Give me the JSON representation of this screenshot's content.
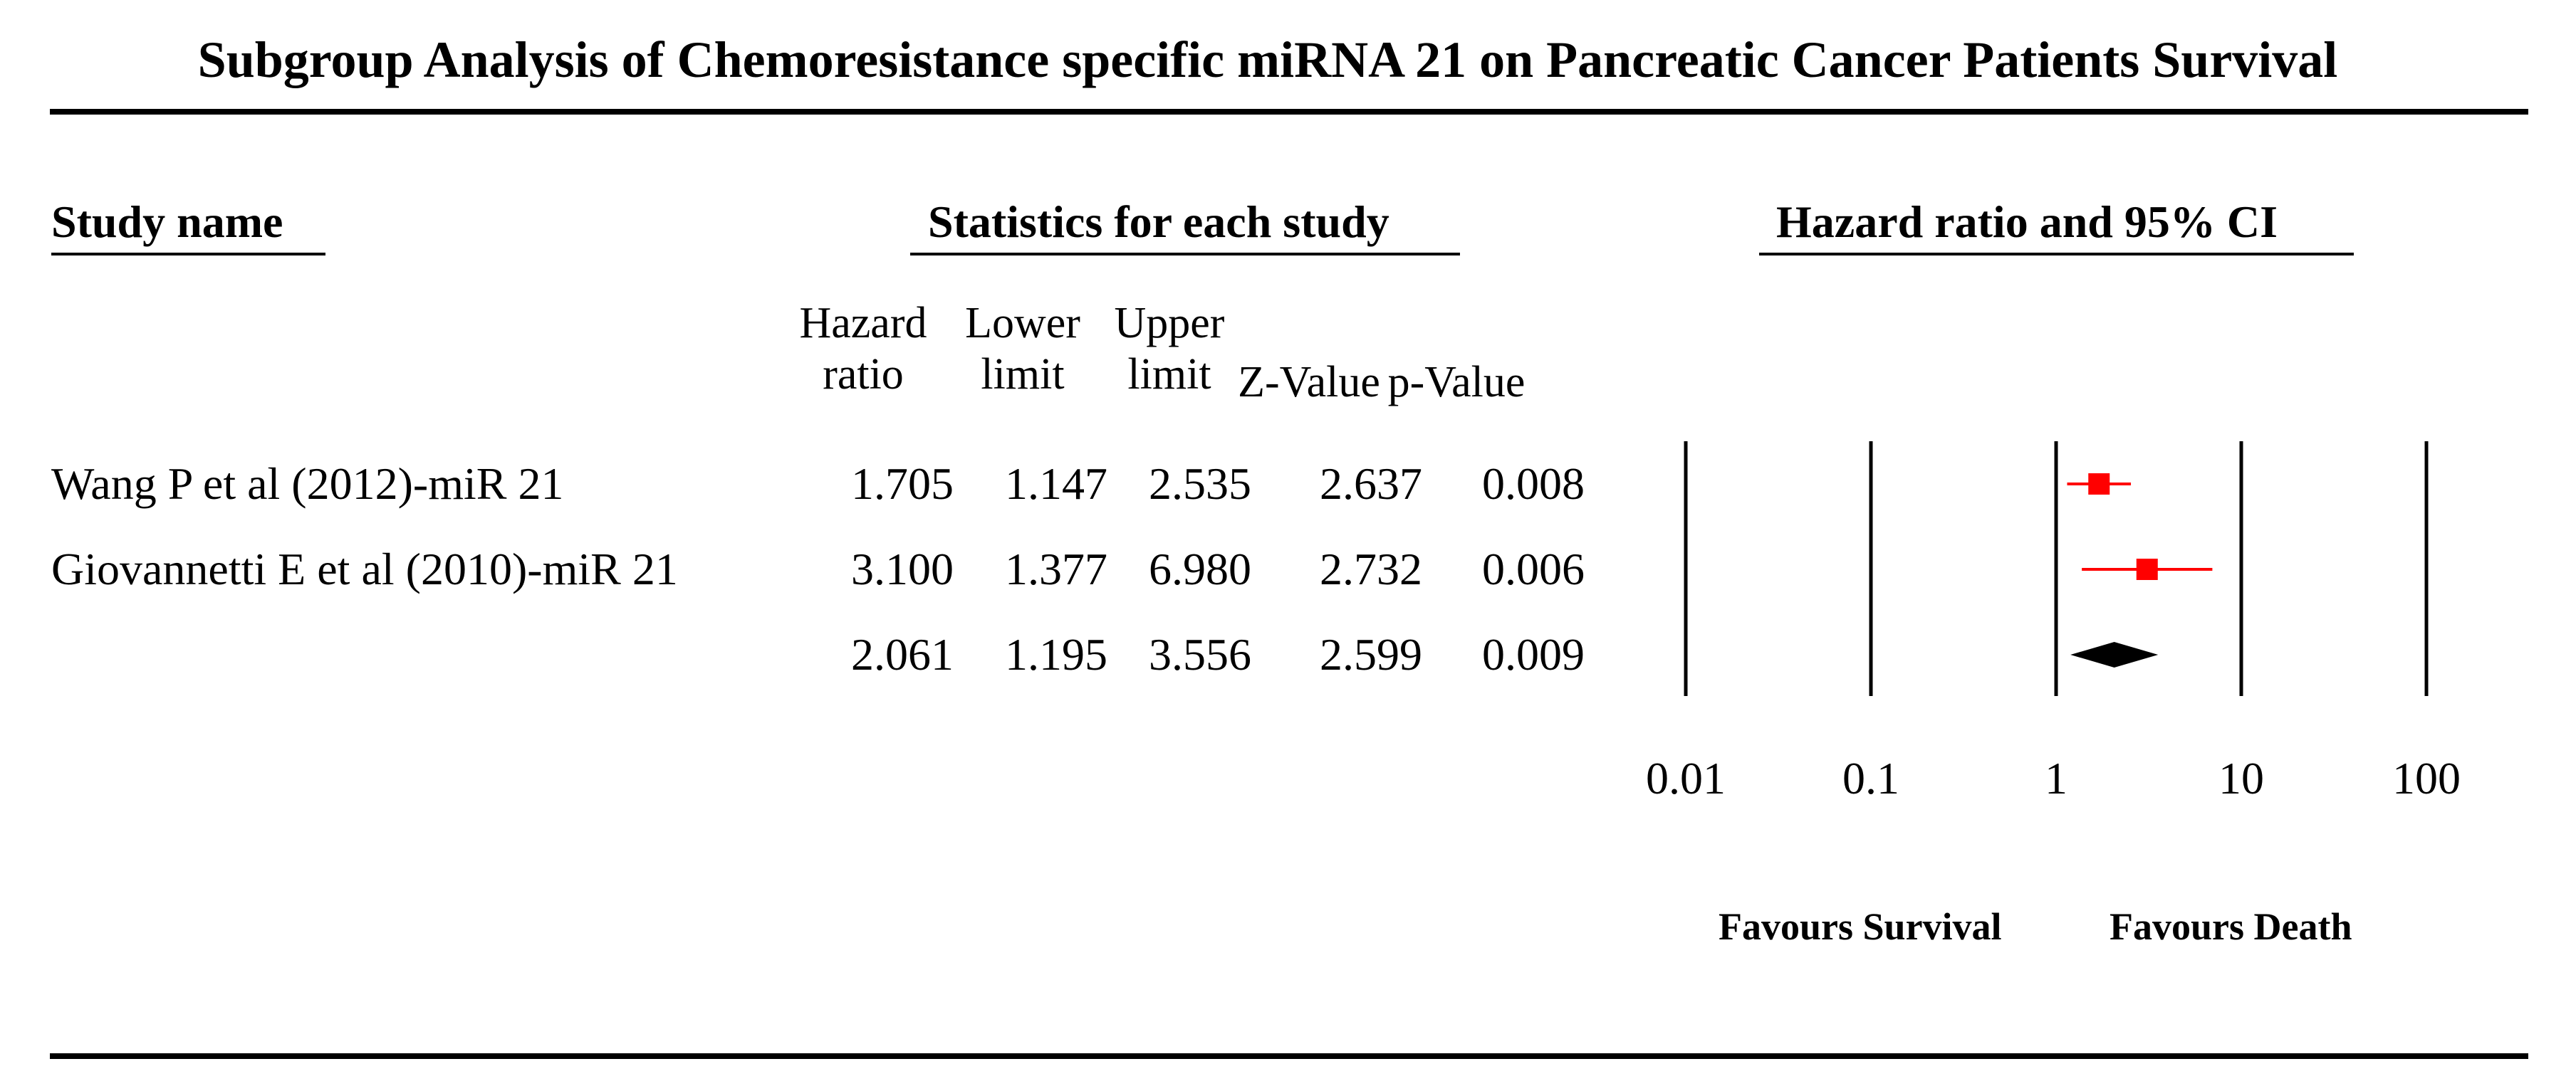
{
  "title": "Subgroup Analysis of Chemoresistance specific miRNA 21 on Pancreatic Cancer Patients Survival",
  "headers": {
    "study_name": "Study name",
    "statistics": "Statistics for each study",
    "plot": "Hazard ratio and 95% CI"
  },
  "columns": {
    "hr": [
      "Hazard",
      "ratio"
    ],
    "lower": [
      "Lower",
      "limit"
    ],
    "upper": [
      "Upper",
      "limit"
    ],
    "z": "Z-Value",
    "p": "p-Value"
  },
  "rows": [
    {
      "study": "Wang P et al (2012)-miR 21",
      "hr": "1.705",
      "lower": "1.147",
      "upper": "2.535",
      "z": "2.637",
      "p": "0.008"
    },
    {
      "study": "Giovannetti E et al (2010)-miR 21",
      "hr": "3.100",
      "lower": "1.377",
      "upper": "6.980",
      "z": "2.732",
      "p": "0.006"
    },
    {
      "study": "",
      "hr": "2.061",
      "lower": "1.195",
      "upper": "3.556",
      "z": "2.599",
      "p": "0.009"
    }
  ],
  "favours": {
    "left": "Favours Survival",
    "right": "Favours Death"
  },
  "colors": {
    "study_marker": "#ff0000",
    "summary": "#000000"
  },
  "chart_data": {
    "type": "forest",
    "title": "Subgroup Analysis of Chemoresistance specific miRNA 21 on Pancreatic Cancer Patients Survival",
    "x_scale": "log",
    "x_ticks": [
      0.01,
      0.1,
      1,
      10,
      100
    ],
    "x_tick_labels": [
      "0.01",
      "0.1",
      "1",
      "10",
      "100"
    ],
    "xlim": [
      0.01,
      100
    ],
    "studies": [
      {
        "name": "Wang P et al (2012)-miR 21",
        "hr": 1.705,
        "lower": 1.147,
        "upper": 2.535
      },
      {
        "name": "Giovannetti E et al (2010)-miR 21",
        "hr": 3.1,
        "lower": 1.377,
        "upper": 6.98
      }
    ],
    "summary": {
      "hr": 2.061,
      "lower": 1.195,
      "upper": 3.556
    }
  }
}
